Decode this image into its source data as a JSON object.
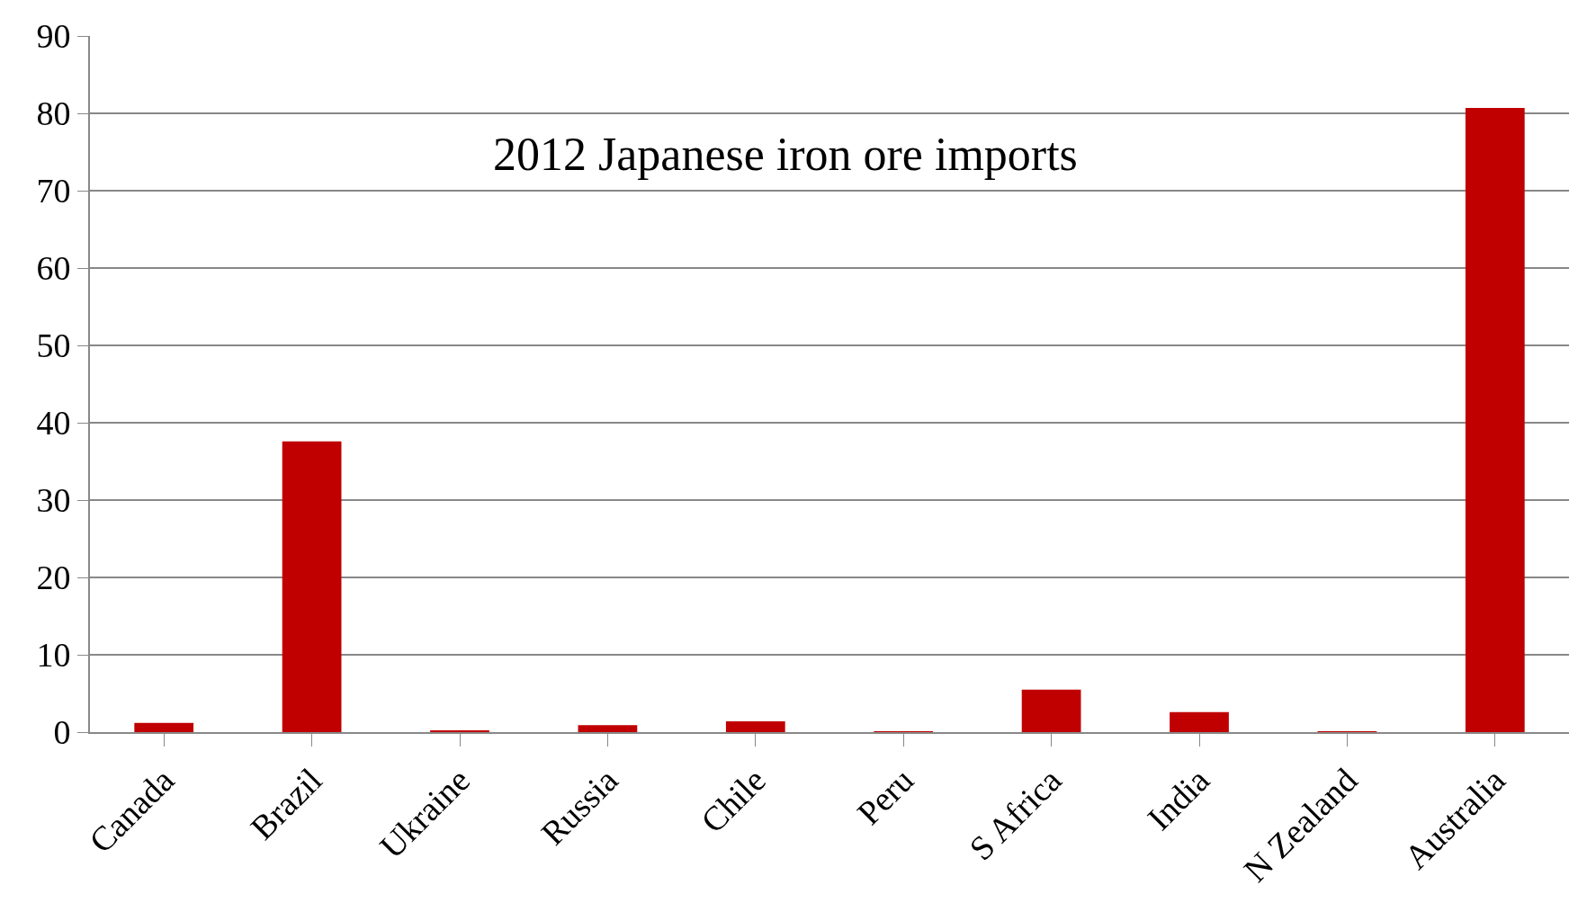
{
  "chart_data": {
    "type": "bar",
    "title": "2012 Japanese iron ore imports",
    "categories": [
      "Canada",
      "Brazil",
      "Ukraine",
      "Russia",
      "Chile",
      "Peru",
      "S Africa",
      "India",
      "N Zealand",
      "Australia"
    ],
    "values": [
      1.2,
      37.6,
      0.2,
      0.9,
      1.4,
      0.1,
      5.5,
      2.6,
      0.1,
      80.7
    ],
    "color": "#c00000",
    "ylim": [
      0,
      90
    ],
    "yticks": [
      0,
      10,
      20,
      30,
      40,
      50,
      60,
      70,
      80,
      90
    ],
    "grid": "y",
    "legend": false
  }
}
